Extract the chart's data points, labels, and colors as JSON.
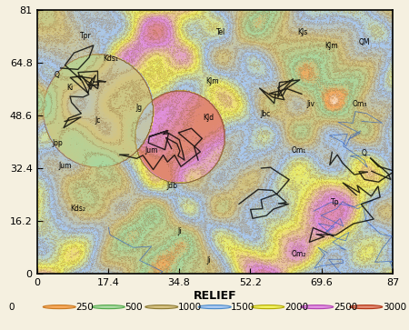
{
  "title": "RELIEF",
  "xlabel_relief": "RELIEF",
  "x_ticks": [
    0,
    17.4,
    34.8,
    52.2,
    69.6,
    87
  ],
  "y_ticks": [
    0,
    16.2,
    32.4,
    48.6,
    64.8,
    81
  ],
  "xlim": [
    0,
    87
  ],
  "ylim": [
    0,
    81
  ],
  "legend_items": [
    {
      "label": "0",
      "color": "#f5f5f5",
      "edge": "#cccccc"
    },
    {
      "label": "250",
      "color": "#f5a85a",
      "edge": "#c87820"
    },
    {
      "label": "500",
      "color": "#a8d8a0",
      "edge": "#50a848"
    },
    {
      "label": "1000",
      "color": "#d4c080",
      "edge": "#8a7830"
    },
    {
      "label": "1500",
      "color": "#a8c8f0",
      "edge": "#4888c8"
    },
    {
      "label": "2000",
      "color": "#f0f060",
      "edge": "#b0a800"
    },
    {
      "label": "2500",
      "color": "#e090e0",
      "edge": "#b040b0"
    },
    {
      "label": "3000",
      "color": "#e08870",
      "edge": "#b03010"
    }
  ],
  "bg_color": "#f5f0e0",
  "map_bg": "#c8daf0",
  "outer_bg": "#f5f0e0",
  "map_image_path": null,
  "frame_color": "#000000",
  "tick_fontsize": 8,
  "label_fontsize": 9,
  "legend_fontsize": 7.5
}
